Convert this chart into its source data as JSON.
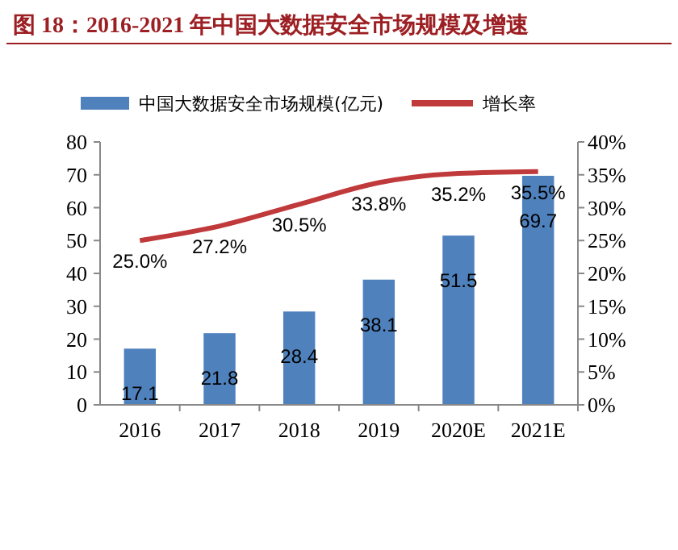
{
  "chart_data": {
    "type": "bar",
    "title": "图 18：2016-2021 年中国大数据安全市场规模及增速",
    "categories": [
      "2016",
      "2017",
      "2018",
      "2019",
      "2020E",
      "2021E"
    ],
    "series": [
      {
        "name": "中国大数据安全市场规模(亿元)",
        "color": "#4f81bd",
        "values": [
          17.1,
          21.8,
          28.4,
          38.1,
          51.5,
          69.7
        ],
        "value_labels": [
          "17.1",
          "21.8",
          "28.4",
          "38.1",
          "51.5",
          "69.7"
        ]
      },
      {
        "name": "增长率",
        "type": "line",
        "axis": "y2",
        "color": "#c0393b",
        "values": [
          25.0,
          27.2,
          30.5,
          33.8,
          35.2,
          35.5
        ],
        "value_labels": [
          "25.0%",
          "27.2%",
          "30.5%",
          "33.8%",
          "35.2%",
          "35.5%"
        ]
      }
    ],
    "ylim": [
      0,
      80
    ],
    "yticks": [
      0,
      10,
      20,
      30,
      40,
      50,
      60,
      70,
      80
    ],
    "y2lim": [
      0,
      40
    ],
    "y2ticks": [
      {
        "value": 0,
        "label": "0%"
      },
      {
        "value": 5,
        "label": "5%"
      },
      {
        "value": 10,
        "label": "10%"
      },
      {
        "value": 15,
        "label": "15%"
      },
      {
        "value": 20,
        "label": "20%"
      },
      {
        "value": 25,
        "label": "25%"
      },
      {
        "value": 30,
        "label": "30%"
      },
      {
        "value": 35,
        "label": "35%"
      },
      {
        "value": 40,
        "label": "40%"
      }
    ],
    "legend": "top",
    "grid": false,
    "marker": "none"
  }
}
